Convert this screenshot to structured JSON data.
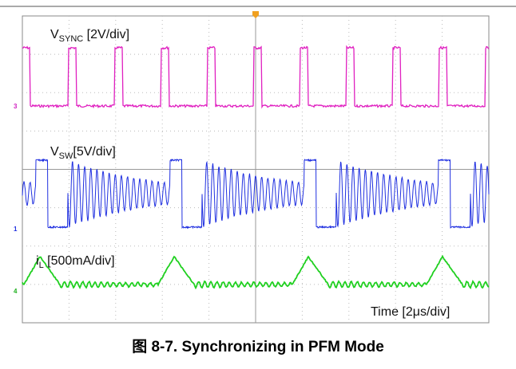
{
  "scope": {
    "labels": {
      "sync": {
        "main": "V",
        "sub": "SYNC",
        "scale": " [2V/div]"
      },
      "sw": {
        "main": "V",
        "sub": "SW",
        "scale": "[5V/div]"
      },
      "il": {
        "main": "i",
        "sub": "L",
        "scale": " [500mA/div]"
      },
      "time": "Time [2μs/div]"
    },
    "markers": {
      "sync": "3",
      "sw": "1",
      "il": "4"
    }
  },
  "caption": "图 8-7. Synchronizing in PFM Mode"
}
